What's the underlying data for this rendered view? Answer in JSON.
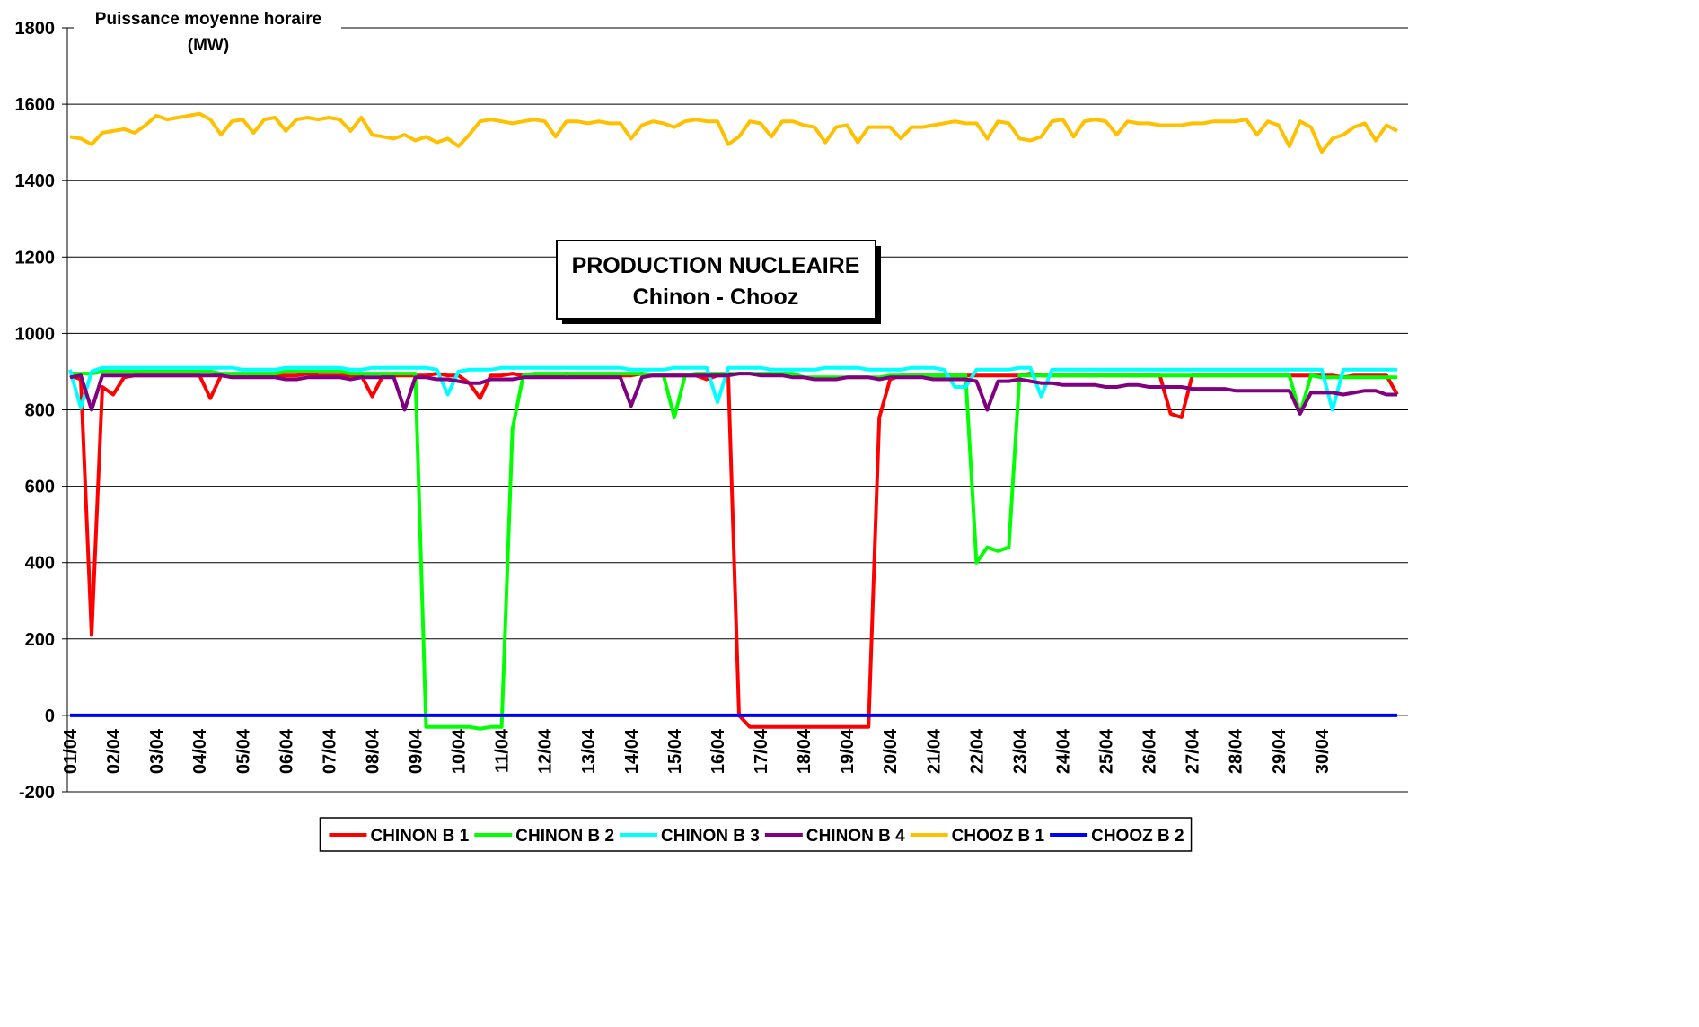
{
  "chart_data": {
    "type": "line",
    "title": [
      "PRODUCTION NUCLEAIRE",
      "Chinon - Chooz"
    ],
    "ylabel": [
      "Puissance moyenne horaire",
      "(MW)"
    ],
    "ylim": [
      -200,
      1800
    ],
    "yticks": [
      -200,
      0,
      200,
      400,
      600,
      800,
      1000,
      1200,
      1400,
      1600,
      1800
    ],
    "grid": true,
    "legend": "bottom",
    "categories": [
      "01/04",
      null,
      null,
      null,
      "02/04",
      null,
      null,
      null,
      "03/04",
      null,
      null,
      null,
      "04/04",
      null,
      null,
      null,
      "05/04",
      null,
      null,
      null,
      "06/04",
      null,
      null,
      null,
      "07/04",
      null,
      null,
      null,
      "08/04",
      null,
      null,
      null,
      "09/04",
      null,
      null,
      null,
      "10/04",
      null,
      null,
      null,
      "11/04",
      null,
      null,
      null,
      "12/04",
      null,
      null,
      null,
      "13/04",
      null,
      null,
      null,
      "14/04",
      null,
      null,
      null,
      "15/04",
      null,
      null,
      null,
      "16/04",
      null,
      null,
      null,
      "17/04",
      null,
      null,
      null,
      "18/04",
      null,
      null,
      null,
      "19/04",
      null,
      null,
      null,
      "20/04",
      null,
      null,
      null,
      "21/04",
      null,
      null,
      null,
      "22/04",
      null,
      null,
      null,
      "23/04",
      null,
      null,
      null,
      "24/04",
      null,
      null,
      null,
      "25/04",
      null,
      null,
      null,
      "26/04",
      null,
      null,
      null,
      "27/04",
      null,
      null,
      null,
      "28/04",
      null,
      null,
      null,
      "29/04",
      null,
      null,
      null,
      "30/04",
      null,
      null,
      null,
      null,
      null,
      null,
      null
    ],
    "series": [
      {
        "name": "CHINON B 1",
        "color": "#ff0000",
        "values": [
          890,
          880,
          210,
          860,
          840,
          885,
          890,
          890,
          890,
          890,
          890,
          890,
          890,
          830,
          890,
          890,
          890,
          890,
          890,
          890,
          890,
          890,
          895,
          890,
          890,
          890,
          890,
          890,
          835,
          890,
          890,
          890,
          890,
          890,
          895,
          890,
          890,
          870,
          830,
          890,
          890,
          895,
          890,
          890,
          890,
          890,
          895,
          890,
          890,
          890,
          890,
          890,
          890,
          895,
          890,
          890,
          890,
          890,
          890,
          880,
          890,
          890,
          0,
          -30,
          -30,
          -30,
          -30,
          -30,
          -30,
          -30,
          -30,
          -30,
          -30,
          -30,
          -30,
          780,
          880,
          890,
          890,
          890,
          890,
          890,
          890,
          890,
          890,
          890,
          890,
          890,
          890,
          895,
          890,
          890,
          890,
          890,
          890,
          890,
          890,
          890,
          890,
          890,
          890,
          890,
          790,
          780,
          890,
          890,
          890,
          890,
          890,
          890,
          890,
          890,
          890,
          890,
          890,
          890,
          890,
          890,
          885,
          890,
          890,
          890,
          890,
          840
        ]
      },
      {
        "name": "CHINON B 2",
        "color": "#00ff00",
        "values": [
          895,
          895,
          895,
          900,
          900,
          900,
          900,
          900,
          900,
          900,
          900,
          900,
          900,
          900,
          895,
          895,
          895,
          895,
          895,
          895,
          900,
          900,
          900,
          900,
          900,
          900,
          895,
          895,
          895,
          895,
          895,
          895,
          895,
          -30,
          -30,
          -30,
          -30,
          -30,
          -35,
          -30,
          -30,
          750,
          890,
          895,
          895,
          895,
          895,
          895,
          895,
          895,
          895,
          895,
          895,
          895,
          890,
          890,
          780,
          890,
          895,
          895,
          895,
          895,
          895,
          895,
          895,
          895,
          895,
          895,
          885,
          885,
          885,
          885,
          885,
          885,
          885,
          885,
          890,
          890,
          890,
          890,
          890,
          890,
          890,
          890,
          400,
          440,
          430,
          440,
          890,
          890,
          890,
          890,
          890,
          890,
          890,
          890,
          890,
          890,
          890,
          890,
          890,
          890,
          890,
          890,
          890,
          890,
          890,
          890,
          890,
          890,
          890,
          890,
          890,
          890,
          790,
          890,
          885,
          885,
          885,
          885,
          885,
          885,
          885,
          885
        ]
      },
      {
        "name": "CHINON B 3",
        "color": "#00ffff",
        "values": [
          905,
          805,
          900,
          910,
          910,
          910,
          910,
          910,
          910,
          910,
          910,
          910,
          910,
          910,
          910,
          910,
          905,
          905,
          905,
          905,
          910,
          910,
          910,
          910,
          910,
          910,
          905,
          905,
          910,
          910,
          910,
          910,
          910,
          910,
          905,
          840,
          900,
          905,
          905,
          905,
          910,
          910,
          910,
          910,
          910,
          910,
          910,
          910,
          910,
          910,
          910,
          910,
          905,
          905,
          905,
          905,
          910,
          910,
          910,
          910,
          820,
          910,
          910,
          910,
          910,
          905,
          905,
          905,
          905,
          905,
          910,
          910,
          910,
          910,
          905,
          905,
          905,
          905,
          910,
          910,
          910,
          905,
          860,
          860,
          905,
          905,
          905,
          905,
          910,
          910,
          835,
          905,
          905,
          905,
          905,
          905,
          905,
          905,
          905,
          905,
          905,
          905,
          905,
          905,
          905,
          905,
          905,
          905,
          905,
          905,
          905,
          905,
          905,
          905,
          905,
          905,
          905,
          800,
          905,
          905,
          905,
          905,
          905,
          905
        ]
      },
      {
        "name": "CHINON B 4",
        "color": "#800080",
        "values": [
          885,
          890,
          800,
          890,
          890,
          890,
          890,
          890,
          890,
          890,
          890,
          890,
          890,
          890,
          890,
          885,
          885,
          885,
          885,
          885,
          880,
          880,
          885,
          885,
          885,
          885,
          880,
          885,
          885,
          885,
          885,
          800,
          885,
          885,
          880,
          880,
          875,
          870,
          870,
          880,
          880,
          880,
          885,
          885,
          885,
          885,
          885,
          885,
          885,
          885,
          885,
          885,
          810,
          885,
          890,
          890,
          890,
          890,
          890,
          890,
          890,
          890,
          895,
          895,
          890,
          890,
          890,
          885,
          885,
          880,
          880,
          880,
          885,
          885,
          885,
          880,
          885,
          885,
          885,
          885,
          880,
          880,
          880,
          880,
          875,
          800,
          875,
          875,
          880,
          875,
          870,
          870,
          865,
          865,
          865,
          865,
          860,
          860,
          865,
          865,
          860,
          860,
          860,
          860,
          855,
          855,
          855,
          855,
          850,
          850,
          850,
          850,
          850,
          850,
          790,
          845,
          845,
          845,
          840,
          845,
          850,
          850,
          840,
          840
        ]
      },
      {
        "name": "CHOOZ B 1",
        "color": "#ffc000",
        "values": [
          1515,
          1510,
          1495,
          1525,
          1530,
          1535,
          1525,
          1545,
          1570,
          1560,
          1565,
          1570,
          1575,
          1560,
          1520,
          1555,
          1560,
          1525,
          1560,
          1565,
          1530,
          1560,
          1565,
          1560,
          1565,
          1560,
          1530,
          1565,
          1520,
          1515,
          1510,
          1520,
          1505,
          1515,
          1500,
          1510,
          1490,
          1520,
          1555,
          1560,
          1555,
          1550,
          1555,
          1560,
          1555,
          1515,
          1555,
          1555,
          1550,
          1555,
          1550,
          1550,
          1510,
          1545,
          1555,
          1550,
          1540,
          1555,
          1560,
          1555,
          1555,
          1495,
          1515,
          1555,
          1550,
          1515,
          1555,
          1555,
          1545,
          1540,
          1500,
          1540,
          1545,
          1500,
          1540,
          1540,
          1540,
          1510,
          1540,
          1540,
          1545,
          1550,
          1555,
          1550,
          1550,
          1510,
          1555,
          1550,
          1510,
          1505,
          1515,
          1555,
          1560,
          1515,
          1555,
          1560,
          1555,
          1520,
          1555,
          1550,
          1550,
          1545,
          1545,
          1545,
          1550,
          1550,
          1555,
          1555,
          1555,
          1560,
          1520,
          1555,
          1545,
          1490,
          1555,
          1540,
          1475,
          1510,
          1520,
          1540,
          1550,
          1505,
          1545,
          1530
        ]
      },
      {
        "name": "CHOOZ B 2",
        "color": "#0000ff",
        "values": [
          0,
          0,
          0,
          0,
          0,
          0,
          0,
          0,
          0,
          0,
          0,
          0,
          0,
          0,
          0,
          0,
          0,
          0,
          0,
          0,
          0,
          0,
          0,
          0,
          0,
          0,
          0,
          0,
          0,
          0,
          0,
          0,
          0,
          0,
          0,
          0,
          0,
          0,
          0,
          0,
          0,
          0,
          0,
          0,
          0,
          0,
          0,
          0,
          0,
          0,
          0,
          0,
          0,
          0,
          0,
          0,
          0,
          0,
          0,
          0,
          0,
          0,
          0,
          0,
          0,
          0,
          0,
          0,
          0,
          0,
          0,
          0,
          0,
          0,
          0,
          0,
          0,
          0,
          0,
          0,
          0,
          0,
          0,
          0,
          0,
          0,
          0,
          0,
          0,
          0,
          0,
          0,
          0,
          0,
          0,
          0,
          0,
          0,
          0,
          0,
          0,
          0,
          0,
          0,
          0,
          0,
          0,
          0,
          0,
          0,
          0,
          0,
          0,
          0,
          0,
          0,
          0,
          0,
          0,
          0,
          0,
          0,
          0,
          0
        ]
      }
    ]
  }
}
